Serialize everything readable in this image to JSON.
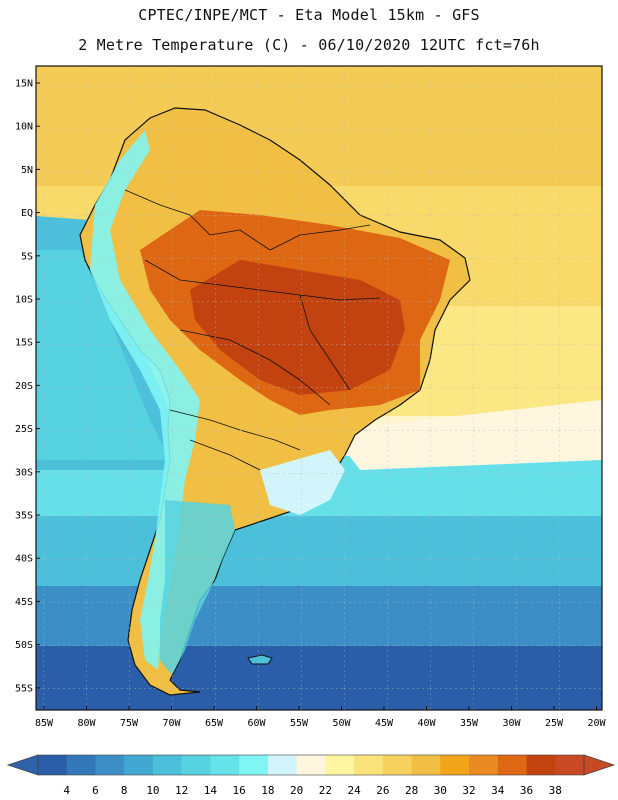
{
  "header": {
    "line1": "CPTEC/INPE/MCT -  Eta Model 15km - GFS",
    "line2": "2 Metre Temperature (C) - 06/10/2020 12UTC fct=76h"
  },
  "map": {
    "lat_labels": [
      "15N",
      "10N",
      "5N",
      "EQ",
      "5S",
      "10S",
      "15S",
      "20S",
      "25S",
      "30S",
      "35S",
      "40S",
      "45S",
      "50S",
      "55S"
    ],
    "lon_labels": [
      "85W",
      "80W",
      "75W",
      "70W",
      "65W",
      "60W",
      "55W",
      "50W",
      "45W",
      "40W",
      "35W",
      "30W",
      "25W",
      "20W"
    ],
    "extent": {
      "lon_min": -86,
      "lon_max": -20,
      "lat_min": -58,
      "lat_max": 16
    }
  },
  "colorbar": {
    "labels": [
      "4",
      "6",
      "8",
      "10",
      "12",
      "14",
      "16",
      "18",
      "20",
      "22",
      "24",
      "26",
      "28",
      "30",
      "32",
      "34",
      "36",
      "38"
    ],
    "colors": [
      "#2b5ea9",
      "#3377b9",
      "#3c8fc6",
      "#42a8d2",
      "#4cc0da",
      "#56d2e0",
      "#66e2ea",
      "#7ff5f4",
      "#d2f4fb",
      "#fff6e0",
      "#fff5a0",
      "#fbe37c",
      "#f7d15e",
      "#f0bf43",
      "#f2a51a",
      "#ea8a23",
      "#de6713",
      "#c24310",
      "#c74a24"
    ],
    "left_arrow_color": "#2f63a9",
    "right_arrow_color": "#c74a24"
  }
}
